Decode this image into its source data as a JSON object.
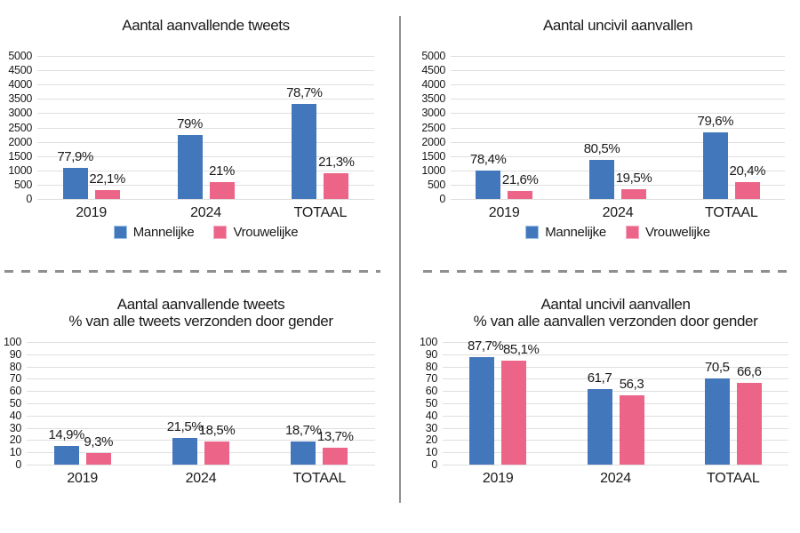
{
  "app": {
    "type": "chart-figure",
    "background": "#ffffff",
    "language": "nl"
  },
  "colors": {
    "male": "#4377BC",
    "male_swatch_border": "#9DC3E6",
    "female": "#EC6488",
    "female_swatch_border": "#F4A8C0",
    "gridline": "#DFDFDF",
    "divider": "#8F8F8F",
    "text": "#1A1A1A"
  },
  "legend": {
    "items": [
      {
        "label": "Mannelijke",
        "color": "#4377BC"
      },
      {
        "label": "Vrouwelijke",
        "color": "#EC6488"
      }
    ]
  },
  "chart_data": [
    {
      "id": "aanvallende-tweets-aantal",
      "type": "bar",
      "title": "Aantal aanvallende tweets",
      "subtitle": "",
      "categories": [
        "2019",
        "2024",
        "TOTAAL"
      ],
      "series": [
        {
          "name": "Mannelijke",
          "color": "#4377BC",
          "values": [
            1100,
            2230,
            3330
          ],
          "labels": [
            "77,9%",
            "79%",
            "78,7%"
          ]
        },
        {
          "name": "Vrouwelijke",
          "color": "#EC6488",
          "values": [
            310,
            590,
            900
          ],
          "labels": [
            "22,1%",
            "21%",
            "21,3%"
          ]
        }
      ],
      "xlabel": "",
      "ylabel": "",
      "ylim": [
        0,
        5000
      ],
      "ytick_step": 500,
      "grid": true,
      "legend": true,
      "legend_position": "bottom"
    },
    {
      "id": "uncivil-aanvallen-aantal",
      "type": "bar",
      "title": "Aantal uncivil aanvallen",
      "subtitle": "",
      "categories": [
        "2019",
        "2024",
        "TOTAAL"
      ],
      "series": [
        {
          "name": "Mannelijke",
          "color": "#4377BC",
          "values": [
            980,
            1360,
            2340
          ],
          "labels": [
            "78,4%",
            "80,5%",
            "79,6%"
          ]
        },
        {
          "name": "Vrouwelijke",
          "color": "#EC6488",
          "values": [
            270,
            330,
            600
          ],
          "labels": [
            "21,6%",
            "19,5%",
            "20,4%"
          ]
        }
      ],
      "xlabel": "",
      "ylabel": "",
      "ylim": [
        0,
        5000
      ],
      "ytick_step": 500,
      "grid": true,
      "legend": true,
      "legend_position": "bottom"
    },
    {
      "id": "aanvallende-tweets-percentage",
      "type": "bar",
      "title": "Aantal aanvallende tweets",
      "subtitle": "% van alle tweets verzonden door gender",
      "categories": [
        "2019",
        "2024",
        "TOTAAL"
      ],
      "series": [
        {
          "name": "Mannelijke",
          "color": "#4377BC",
          "values": [
            14.9,
            21.5,
            18.7
          ],
          "labels": [
            "14,9%",
            "21,5%",
            "18,7%"
          ]
        },
        {
          "name": "Vrouwelijke",
          "color": "#EC6488",
          "values": [
            9.3,
            18.5,
            13.7
          ],
          "labels": [
            "9,3%",
            "18,5%",
            "13,7%"
          ]
        }
      ],
      "xlabel": "",
      "ylabel": "",
      "ylim": [
        0,
        100
      ],
      "ytick_step": 10,
      "grid": true,
      "legend": false,
      "legend_position": "none"
    },
    {
      "id": "uncivil-aanvallen-percentage",
      "type": "bar",
      "title": "Aantal uncivil aanvallen",
      "subtitle": "% van alle aanvallen verzonden door gender",
      "categories": [
        "2019",
        "2024",
        "TOTAAL"
      ],
      "series": [
        {
          "name": "Mannelijke",
          "color": "#4377BC",
          "values": [
            87.7,
            61.7,
            70.5
          ],
          "labels": [
            "87,7%",
            "61,7",
            "70,5"
          ]
        },
        {
          "name": "Vrouwelijke",
          "color": "#EC6488",
          "values": [
            85.1,
            56.3,
            66.6
          ],
          "labels": [
            "85,1%",
            "56,3",
            "66,6"
          ]
        }
      ],
      "xlabel": "",
      "ylabel": "",
      "ylim": [
        0,
        100
      ],
      "ytick_step": 10,
      "grid": true,
      "legend": false,
      "legend_position": "none"
    }
  ]
}
